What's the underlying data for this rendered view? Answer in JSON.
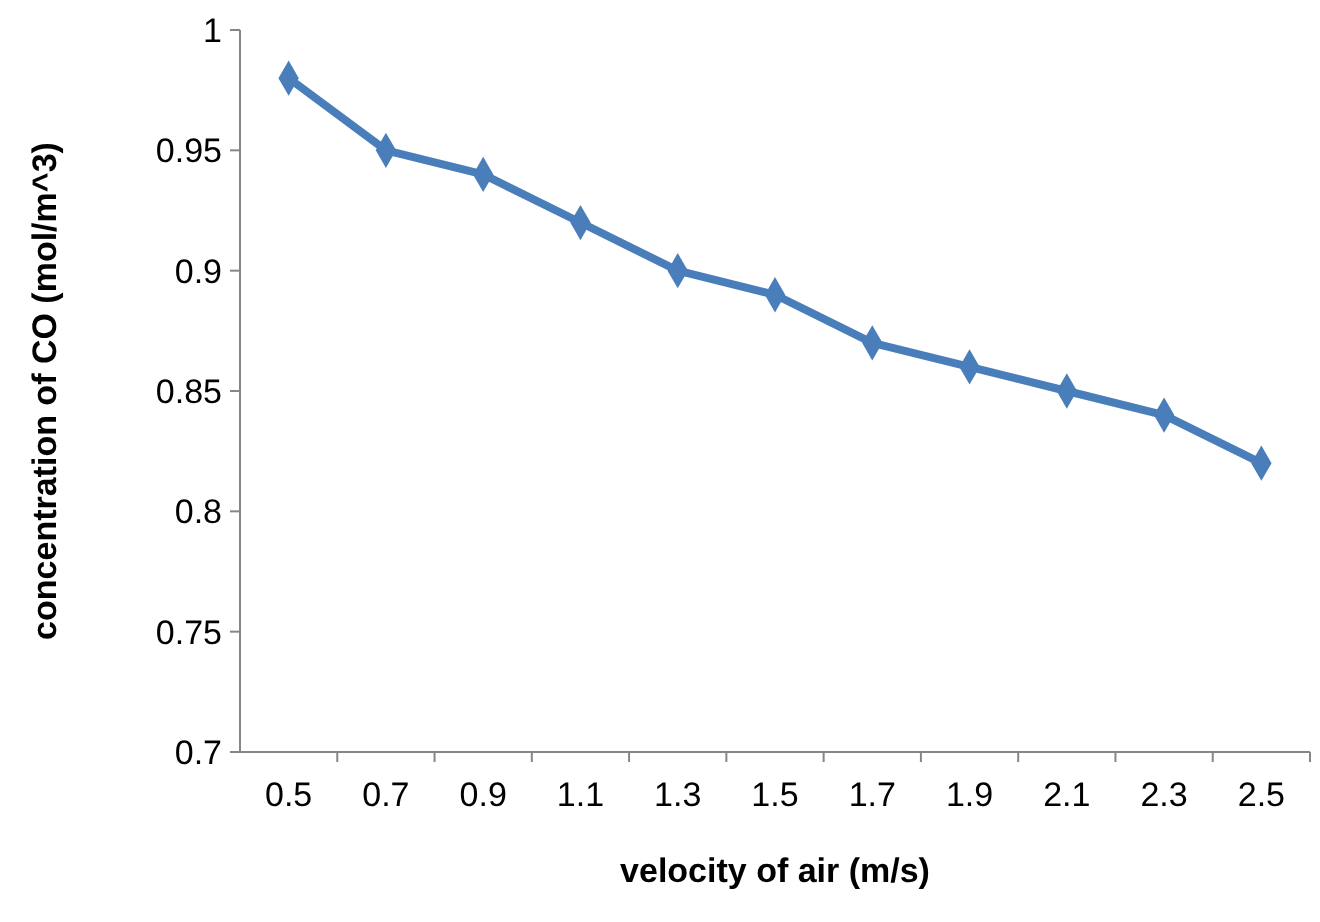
{
  "chart_data": {
    "type": "line",
    "xlabel": "velocity of air (m/s)",
    "ylabel": "concentration of CO (mol/m^3)",
    "categories": [
      "0.5",
      "0.7",
      "0.9",
      "1.1",
      "1.3",
      "1.5",
      "1.7",
      "1.9",
      "2.1",
      "2.3",
      "2.5"
    ],
    "series": [
      {
        "color": "#4a7ebb",
        "values": [
          0.98,
          0.95,
          0.94,
          0.92,
          0.9,
          0.89,
          0.87,
          0.86,
          0.85,
          0.84,
          0.82
        ]
      }
    ],
    "ylim": [
      0.7,
      1
    ],
    "yticks": [
      0.7,
      0.75,
      0.8,
      0.85,
      0.9,
      0.95,
      1
    ],
    "marker": "diamond",
    "line_style": "solid"
  }
}
